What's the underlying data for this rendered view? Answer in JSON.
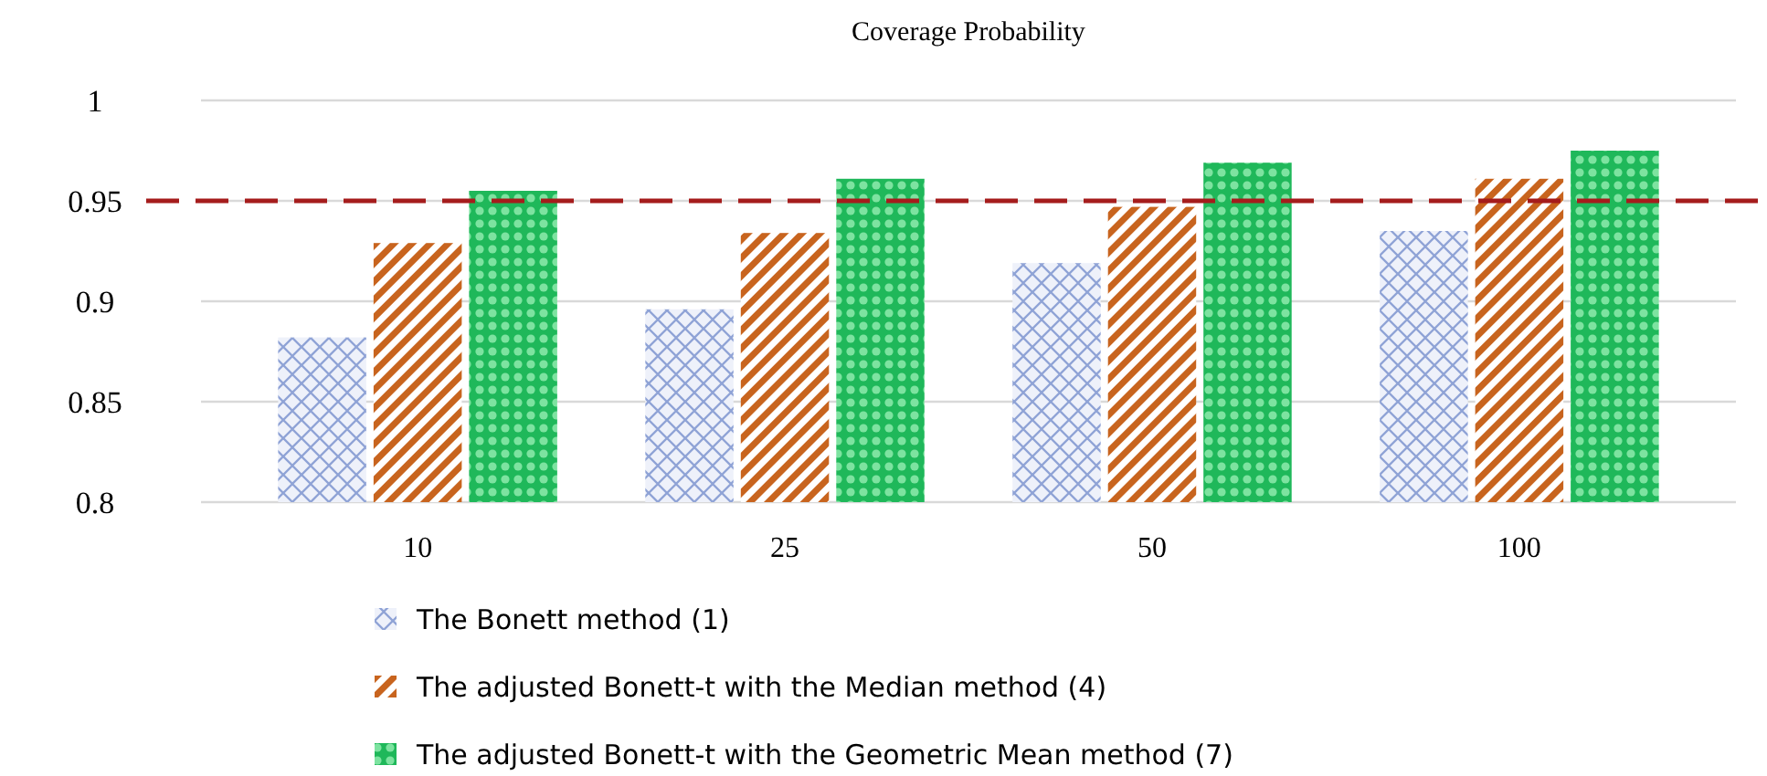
{
  "chart_data": {
    "type": "bar",
    "title": "Coverage Probability",
    "categories": [
      "10",
      "25",
      "50",
      "100"
    ],
    "series": [
      {
        "name": "The Bonett method (1)",
        "color": "#8fa3d6",
        "values": [
          0.882,
          0.896,
          0.919,
          0.935
        ]
      },
      {
        "name": "The adjusted Bonett-t with the Median method (4)",
        "color": "#c8641e",
        "values": [
          0.929,
          0.934,
          0.947,
          0.961
        ]
      },
      {
        "name": "The adjusted Bonett-t with the Geometric Mean method (7)",
        "color": "#1fb85a",
        "values": [
          0.955,
          0.961,
          0.969,
          0.975
        ]
      }
    ],
    "ylim": [
      0.8,
      1
    ],
    "yticks": [
      0.8,
      0.85,
      0.9,
      0.95,
      1
    ],
    "grid": "y",
    "legend": "bottom",
    "ref_lines": [
      {
        "axis": "y",
        "value": 0.95,
        "color": "#a51c1c",
        "line_style": "dashed"
      }
    ]
  }
}
